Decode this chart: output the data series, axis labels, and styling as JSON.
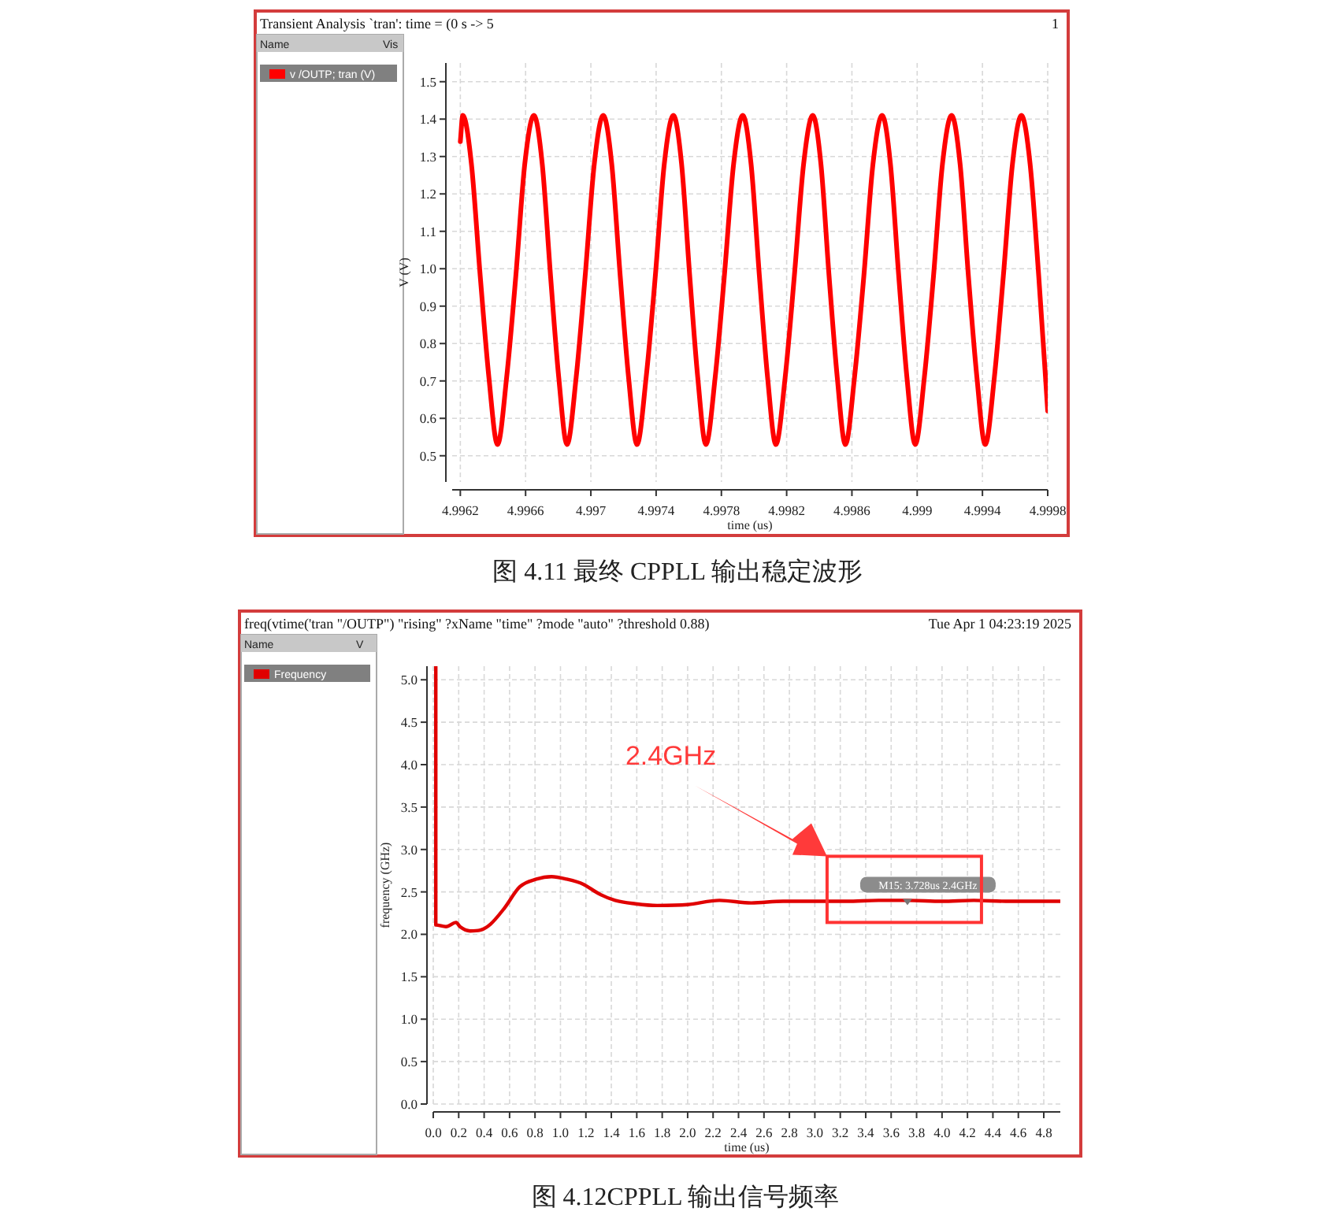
{
  "chart_data": [
    {
      "type": "line",
      "title": "Transient Analysis `tran': time = (0 s -> 5",
      "subtitle": "1",
      "xlabel": "time (us)",
      "ylabel": "V (V)",
      "annotations": [
        "Name",
        "Vis",
        "图 4.11 最终 CPPLL 输出稳定波形"
      ],
      "xlim": [
        4.99615,
        4.9998
      ],
      "xticks": [
        4.9962,
        4.9966,
        4.997,
        4.9974,
        4.9978,
        4.9982,
        4.9986,
        4.999,
        4.9994,
        4.9998
      ],
      "ylim": [
        0.43,
        1.55
      ],
      "yticks": [
        {
          "value": 0.5,
          "label": "0.5"
        },
        0.6,
        0.7,
        0.8,
        0.9,
        {
          "value": 1,
          "label": "1.0"
        },
        1.1,
        1.2,
        1.3,
        1.4,
        1.5
      ],
      "grid": true,
      "legend": "left",
      "marker": "none",
      "line_style": "solid",
      "series": [
        {
          "name": "v /OUTP; tran (V)",
          "color": "#ff0000",
          "x": [
            4.9962,
            4.996215,
            4.996268,
            4.996322,
            4.996375,
            4.996428,
            4.996484,
            4.99654,
            4.996595,
            4.996651,
            4.996702,
            4.996753,
            4.996803,
            4.996854,
            4.99691,
            4.996965,
            4.997021,
            4.997076,
            4.997128,
            4.99718,
            4.997231,
            4.997283,
            4.997339,
            4.997395,
            4.99745,
            4.997506,
            4.997556,
            4.997606,
            4.997655,
            4.997705,
            4.997762,
            4.997818,
            4.997875,
            4.997931,
            4.997982,
            4.998033,
            4.998083,
            4.998134,
            4.998191,
            4.998247,
            4.998304,
            4.99836,
            4.99841,
            4.99846,
            4.99851,
            4.99856,
            4.998616,
            4.998673,
            4.998729,
            4.998785,
            4.998836,
            4.998887,
            4.998937,
            4.998988,
            4.999044,
            4.9991,
            4.999155,
            4.999211,
            4.999263,
            4.999314,
            4.999366,
            4.999417,
            4.999473,
            4.999528,
            4.999584,
            4.999639,
            4.999692,
            4.999745,
            4.9998
          ],
          "values": [
            1.34,
            1.41,
            1.28,
            0.98,
            0.71,
            0.53,
            0.71,
            0.98,
            1.28,
            1.41,
            1.28,
            0.98,
            0.71,
            0.53,
            0.71,
            0.98,
            1.28,
            1.41,
            1.28,
            0.98,
            0.71,
            0.53,
            0.71,
            0.98,
            1.28,
            1.41,
            1.28,
            0.98,
            0.71,
            0.53,
            0.71,
            0.98,
            1.28,
            1.41,
            1.28,
            0.98,
            0.71,
            0.53,
            0.71,
            0.98,
            1.28,
            1.41,
            1.28,
            0.98,
            0.71,
            0.53,
            0.71,
            0.98,
            1.28,
            1.41,
            1.28,
            0.98,
            0.71,
            0.53,
            0.71,
            0.98,
            1.28,
            1.41,
            1.28,
            0.98,
            0.71,
            0.53,
            0.71,
            0.98,
            1.28,
            1.41,
            1.28,
            0.98,
            0.62
          ]
        }
      ]
    },
    {
      "type": "line",
      "title": "freq(vtime('tran \"/OUTP\") \"rising\" ?xName \"time\" ?mode \"auto\" ?threshold 0.88)",
      "subtitle": "Tue Apr 1 04:23:19 2025",
      "xlabel": "time (us)",
      "ylabel": "frequency (GHz)",
      "annotations": [
        "Name",
        "V",
        {
          "text": "M15: 3.728us 2.4GHz",
          "x": 3.728,
          "y": 2.4
        },
        "2.4GHz",
        "图 4.12CPPLL 输出信号频率"
      ],
      "xlim": [
        0,
        4.93
      ],
      "xticks": [
        {
          "value": 0,
          "label": "0.0"
        },
        0.2,
        0.4,
        0.6,
        0.8,
        {
          "value": 1,
          "label": "1.0"
        },
        1.2,
        1.4,
        1.6,
        1.8,
        {
          "value": 2,
          "label": "2.0"
        },
        2.2,
        2.4,
        2.6,
        2.8,
        {
          "value": 3,
          "label": "3.0"
        },
        3.2,
        3.4,
        3.6,
        3.8,
        {
          "value": 4,
          "label": "4.0"
        },
        4.2,
        4.4,
        4.6,
        4.8
      ],
      "ylim": [
        0,
        5.16
      ],
      "yticks": [
        {
          "value": 0,
          "label": "0.0"
        },
        0.5,
        {
          "value": 1,
          "label": "1.0"
        },
        1.5,
        {
          "value": 2,
          "label": "2.0"
        },
        2.5,
        {
          "value": 3,
          "label": "3.0"
        },
        3.5,
        {
          "value": 4,
          "label": "4.0"
        },
        4.5,
        {
          "value": 5,
          "label": "5.0"
        }
      ],
      "grid": true,
      "legend": "left",
      "marker": "none",
      "line_style": "solid",
      "series": [
        {
          "name": "Frequency",
          "color": "#e00000",
          "x": [
            0.02,
            0.02,
            0.1,
            0.18,
            0.21,
            0.29,
            0.37,
            0.45,
            0.56,
            0.68,
            0.81,
            0.93,
            1.05,
            1.18,
            1.3,
            1.43,
            1.59,
            1.76,
            2.0,
            2.25,
            2.5,
            2.75,
            3.0,
            3.25,
            3.5,
            3.728,
            4.0,
            4.25,
            4.5,
            4.75,
            4.93
          ],
          "values": [
            5.16,
            2.11,
            2.09,
            2.14,
            2.09,
            2.04,
            2.05,
            2.12,
            2.31,
            2.56,
            2.65,
            2.68,
            2.65,
            2.59,
            2.48,
            2.4,
            2.36,
            2.34,
            2.35,
            2.4,
            2.37,
            2.39,
            2.39,
            2.39,
            2.4,
            2.4,
            2.39,
            2.4,
            2.39,
            2.39,
            2.39
          ]
        }
      ]
    }
  ]
}
